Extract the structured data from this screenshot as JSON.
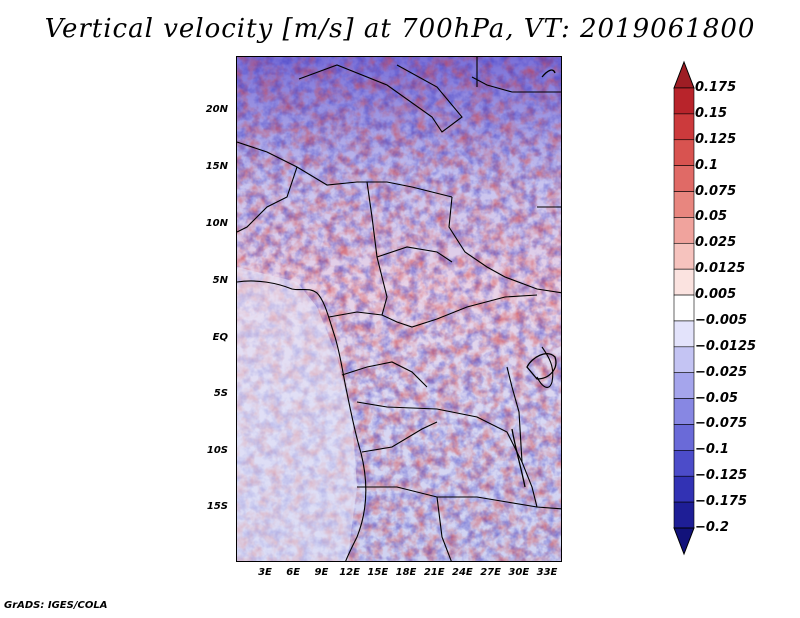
{
  "title": "Vertical velocity [m/s] at 700hPa, VT: 2019061800",
  "footer": "GrADS: IGES/COLA",
  "map": {
    "lat_ticks": [
      "20N",
      "15N",
      "10N",
      "5N",
      "EQ",
      "5S",
      "10S",
      "15S"
    ],
    "lon_ticks": [
      "3E",
      "6E",
      "9E",
      "12E",
      "15E",
      "18E",
      "21E",
      "24E",
      "27E",
      "30E",
      "33E"
    ]
  },
  "colorbar": {
    "labels": [
      "0.175",
      "0.15",
      "0.125",
      "0.1",
      "0.075",
      "0.05",
      "0.025",
      "0.0125",
      "0.005",
      "−0.005",
      "−0.0125",
      "−0.025",
      "−0.05",
      "−0.075",
      "−0.1",
      "−0.125",
      "−0.175",
      "−0.2"
    ],
    "colors": [
      "#9e1d24",
      "#b8242b",
      "#cc3a3c",
      "#d85350",
      "#e06a66",
      "#e8867f",
      "#f0a39d",
      "#f6c3be",
      "#fbe3e0",
      "#ffffff",
      "#e3e3fb",
      "#c4c4f3",
      "#a5a5ec",
      "#8787e3",
      "#6a6ad8",
      "#4c4cc9",
      "#3232b4",
      "#1e1e96",
      "#12127a"
    ]
  }
}
